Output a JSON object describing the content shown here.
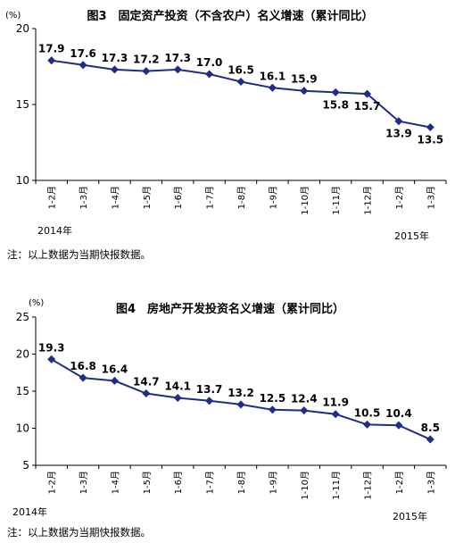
{
  "chart_data": [
    {
      "type": "line",
      "title": "图3　固定资产投资（不含农户）名义增速（累计同比）",
      "unit": "(%)",
      "categories": [
        "1-2月",
        "1-3月",
        "1-4月",
        "1-5月",
        "1-6月",
        "1-7月",
        "1-8月",
        "1-9月",
        "1-10月",
        "1-11月",
        "1-12月",
        "1-2月",
        "1-3月"
      ],
      "values": [
        17.9,
        17.6,
        17.3,
        17.2,
        17.3,
        17.0,
        16.5,
        16.1,
        15.9,
        15.8,
        15.7,
        13.9,
        13.5
      ],
      "data_labels": [
        "17.9",
        "17.6",
        "17.3",
        "17.2",
        "17.3",
        "17.0",
        "16.5",
        "16.1",
        "15.9",
        "15.8",
        "15.7",
        "13.9",
        "13.5"
      ],
      "ylim": [
        10,
        20
      ],
      "yticks": [
        "10",
        "15",
        "20"
      ],
      "year_start": "2014年",
      "year_end": "2015年",
      "note": "注：以上数据为当期快报数据。",
      "line_color": "#1f2d86",
      "grid": false
    },
    {
      "type": "line",
      "title": "图4　房地产开发投资名义增速（累计同比）",
      "unit": "(%)",
      "categories": [
        "1-2月",
        "1-3月",
        "1-4月",
        "1-5月",
        "1-6月",
        "1-7月",
        "1-8月",
        "1-9月",
        "1-10月",
        "1-11月",
        "1-12月",
        "1-2月",
        "1-3月"
      ],
      "values": [
        19.3,
        16.8,
        16.4,
        14.7,
        14.1,
        13.7,
        13.2,
        12.5,
        12.4,
        11.9,
        10.5,
        10.4,
        8.5
      ],
      "data_labels": [
        "19.3",
        "16.8",
        "16.4",
        "14.7",
        "14.1",
        "13.7",
        "13.2",
        "12.5",
        "12.4",
        "11.9",
        "10.5",
        "10.4",
        "8.5"
      ],
      "ylim": [
        5,
        25
      ],
      "yticks": [
        "5",
        "10",
        "15",
        "20",
        "25"
      ],
      "year_start": "2014年",
      "year_end": "2015年",
      "note": "注：以上数据为当期快报数据。",
      "line_color": "#1f2d86",
      "grid": false
    }
  ]
}
